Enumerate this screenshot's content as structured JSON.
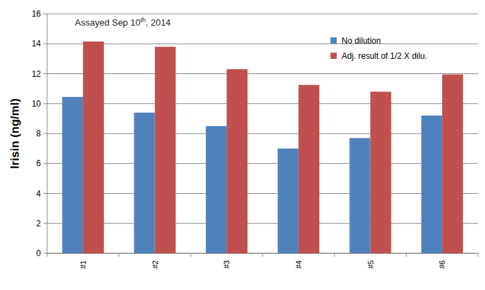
{
  "chart_data": {
    "type": "bar",
    "annotation": "Assayed Sep 10th, 2014",
    "y_label": "Irisin (ng/ml)",
    "categories": [
      "#1",
      "#2",
      "#3",
      "#4",
      "#5",
      "#6"
    ],
    "series": [
      {
        "name": "No dilution",
        "color": "#4f81bd",
        "values": [
          10.45,
          9.4,
          8.5,
          7.0,
          7.7,
          9.2
        ]
      },
      {
        "name": "Adj. result of 1/2 X dilu.",
        "color": "#c0504d",
        "values": [
          14.15,
          13.8,
          12.3,
          11.25,
          10.8,
          11.95
        ]
      }
    ],
    "ylim": [
      0,
      16
    ],
    "yticks": [
      0,
      2,
      4,
      6,
      8,
      10,
      12,
      14,
      16
    ],
    "grid": true,
    "legend": "upper right"
  }
}
